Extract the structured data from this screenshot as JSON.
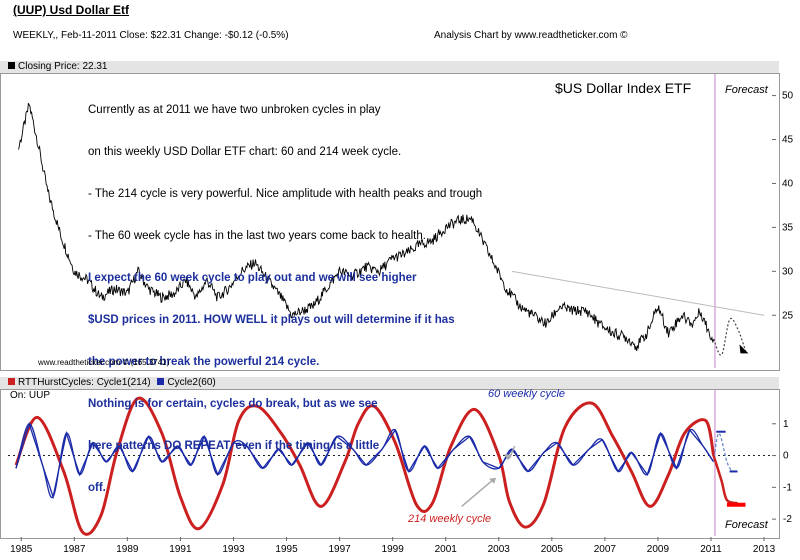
{
  "header": {
    "title": "(UUP) Usd Dollar Etf",
    "info": "WEEKLY,, Feb-11-2011  Close: $22.31  Change: -$0.12  (-0.5%)",
    "credit": "Analysis Chart by www.readtheticker.com ©"
  },
  "price_panel": {
    "legend_label": "Closing Price: 22.31",
    "legend_color": "#000000",
    "chart_title": "$US Dollar Index ETF",
    "forecast_label": "Forecast",
    "watermark": "www.readtheticker.com © (165.3741)",
    "notes_plain": [
      "Currently as at 2011 we have two unbroken cycles in play",
      "on this weekly USD Dollar ETF chart: 60 and 214 week cycle.",
      "- The 214 cycle is very powerful. Nice amplitude with health peaks and trough",
      "- The 60 week cycle has in the last two years come back to health."
    ],
    "notes_bold": [
      "I expect the 60 week cycle to play out and we will see higher",
      "$USD prices in 2011. HOW WELL it plays out will determine if it has",
      "the power to break the powerful 214 cycle.",
      "Nothing is for certain, cycles do break, but as we see",
      "here patterns DO REPEAT, even if the timing is a little",
      "off."
    ]
  },
  "cycle_panel": {
    "legend_cycle1": "RTTHurstCycles: Cycle1(214)",
    "legend_cycle2": "Cycle2(60)",
    "cycle1_color": "#cc1f1f",
    "cycle2_color": "#1a2aa8",
    "on_label": "On: UUP",
    "annotation_60": "60 weekly cycle",
    "annotation_214": "214 weekly cycle",
    "forecast_label": "Forecast"
  },
  "chart_data": [
    {
      "type": "line",
      "title": "$US Dollar Index ETF",
      "ylabel": "Closing Price",
      "ylim": [
        19,
        52
      ],
      "yticks": [
        25,
        30,
        35,
        40,
        45,
        50
      ],
      "x": [
        1984.9,
        1985.3,
        1985.6,
        1986.0,
        1986.5,
        1987.0,
        1987.5,
        1988.0,
        1988.5,
        1989.0,
        1989.4,
        1989.8,
        1990.3,
        1990.8,
        1991.2,
        1991.6,
        1992.0,
        1992.4,
        1992.8,
        1993.3,
        1993.8,
        1994.3,
        1994.8,
        1995.2,
        1995.6,
        1996.0,
        1996.5,
        1997.0,
        1997.5,
        1998.0,
        1998.5,
        1999.0,
        1999.5,
        2000.0,
        2000.5,
        2001.0,
        2001.5,
        2002.0,
        2002.3,
        2002.8,
        2003.3,
        2003.8,
        2004.3,
        2004.8,
        2005.3,
        2005.8,
        2006.3,
        2006.8,
        2007.3,
        2007.8,
        2008.2,
        2008.6,
        2009.0,
        2009.4,
        2009.9,
        2010.3,
        2010.6,
        2011.0,
        2011.1
      ],
      "values": [
        44,
        49,
        45,
        39,
        34,
        30,
        29,
        27,
        28,
        27.5,
        30,
        28,
        27,
        27.5,
        29,
        27,
        29,
        27,
        28,
        30,
        31,
        29,
        27,
        25,
        25.5,
        26,
        28,
        30,
        29.5,
        30.5,
        30,
        31.5,
        32,
        33,
        33.5,
        35,
        35.8,
        36,
        34,
        31,
        28,
        26,
        25,
        24,
        26,
        25.5,
        25.5,
        24,
        23,
        22.5,
        21.5,
        23,
        26,
        23,
        25,
        24,
        25.5,
        22.5,
        22.3
      ],
      "forecast_x": [
        2011.1,
        2011.4,
        2011.7,
        2012.0,
        2012.3
      ],
      "forecast_values": [
        22.3,
        20.5,
        24.5,
        23.5,
        21
      ],
      "trendline": {
        "x": [
          2003.5,
          2013.0
        ],
        "values": [
          30,
          25
        ]
      }
    },
    {
      "type": "line",
      "title": "RTTHurstCycles",
      "ylim": [
        -2.5,
        2
      ],
      "yticks": [
        -2,
        -1,
        0,
        1
      ],
      "series": [
        {
          "name": "Cycle1(214)",
          "x": [
            1984.8,
            1985.6,
            1986.6,
            1987.3,
            1988.0,
            1988.6,
            1989.4,
            1990.3,
            1991.0,
            1991.7,
            1992.6,
            1993.2,
            1993.9,
            1994.8,
            1995.5,
            1996.3,
            1997.2,
            1997.7,
            1998.3,
            1999.1,
            1999.9,
            2000.5,
            2001.2,
            2002.1,
            2003.0,
            2003.4,
            2004.0,
            2004.7,
            2005.5,
            2006.5,
            2007.3,
            2008.0,
            2008.7,
            2009.4,
            2010.0,
            2010.8,
            2011.1
          ],
          "values": [
            -0.3,
            1.2,
            -0.5,
            -2.4,
            -1.9,
            0.1,
            1.8,
            0.7,
            -1.3,
            -2.3,
            -0.9,
            1.1,
            1.55,
            0.7,
            -0.3,
            -1.6,
            -0.2,
            1.0,
            1.55,
            0.4,
            -1.55,
            -1.5,
            0.3,
            1.45,
            0.0,
            -1.45,
            -2.25,
            -1.5,
            0.9,
            1.65,
            0.6,
            -0.5,
            -1.6,
            -0.6,
            0.7,
            1.1,
            0.0
          ],
          "forecast_x": [
            2011.1,
            2011.4,
            2011.6,
            2012.0
          ],
          "forecast_values": [
            0.0,
            -0.8,
            -1.4,
            -1.5
          ]
        },
        {
          "name": "Cycle2(60)",
          "x": [
            1984.8,
            1985.3,
            1985.8,
            1986.2,
            1986.7,
            1987.2,
            1987.7,
            1988.2,
            1988.7,
            1989.2,
            1989.8,
            1990.3,
            1990.9,
            1991.4,
            1991.9,
            1992.4,
            1993.0,
            1993.5,
            1994.1,
            1994.7,
            1995.2,
            1995.8,
            1996.3,
            1996.9,
            1997.5,
            1998.0,
            1998.6,
            1999.1,
            1999.6,
            2000.2,
            2000.7,
            2001.3,
            2001.9,
            2002.4,
            2003.0,
            2003.5,
            2004.1,
            2004.7,
            2005.2,
            2005.8,
            2006.4,
            2006.9,
            2007.5,
            2008.0,
            2008.6,
            2009.1,
            2009.7,
            2010.2,
            2010.7,
            2011.1
          ],
          "values": [
            -0.4,
            1.0,
            -0.3,
            -1.3,
            0.7,
            -0.6,
            0.4,
            -0.2,
            0.3,
            -0.5,
            0.6,
            -0.2,
            0.3,
            -0.3,
            0.6,
            -0.6,
            0.4,
            0.3,
            -0.4,
            0.2,
            -0.3,
            0.4,
            -0.3,
            0.6,
            0.2,
            -0.3,
            0.2,
            0.8,
            -0.5,
            0.3,
            -0.4,
            0.2,
            0.6,
            -0.2,
            -0.4,
            0.2,
            -0.5,
            0.1,
            0.4,
            -0.3,
            0.2,
            0.5,
            -0.5,
            0.1,
            -0.6,
            0.7,
            -0.4,
            0.8,
            0.3,
            -0.2
          ],
          "forecast_x": [
            2011.1,
            2011.3,
            2011.6,
            2011.8
          ],
          "forecast_values": [
            -0.2,
            0.7,
            -0.2,
            -0.5
          ]
        }
      ]
    }
  ],
  "x_axis": {
    "xlim": [
      1984.5,
      2013.3
    ],
    "tick_labels": [
      "1985",
      "1987",
      "1989",
      "1991",
      "1993",
      "1995",
      "1997",
      "1999",
      "2001",
      "2003",
      "2005",
      "2007",
      "2009",
      "2011",
      "2013"
    ],
    "tick_values": [
      1985,
      1987,
      1989,
      1991,
      1993,
      1995,
      1997,
      1999,
      2001,
      2003,
      2005,
      2007,
      2009,
      2011,
      2013
    ]
  }
}
